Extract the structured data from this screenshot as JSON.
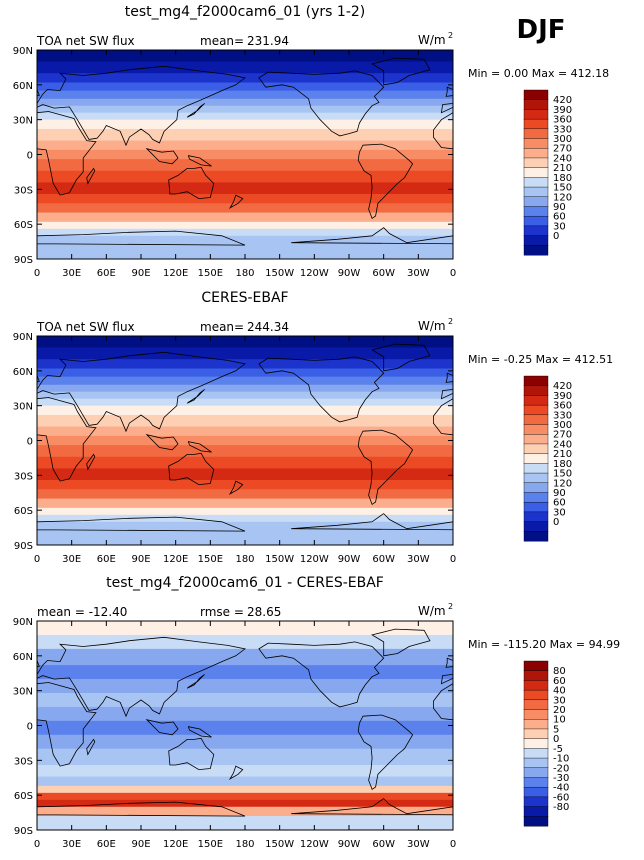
{
  "season": "DJF",
  "axes": {
    "lat_labels": [
      "90N",
      "60N",
      "30N",
      "0",
      "30S",
      "60S",
      "90S"
    ],
    "lon_labels": [
      "0",
      "30E",
      "60E",
      "90E",
      "120E",
      "150E",
      "180",
      "150W",
      "120W",
      "90W",
      "60W",
      "30W",
      "0"
    ]
  },
  "panels": [
    {
      "title": "test_mg4_f2000cam6_01 (yrs 1-2)",
      "left_label": "TOA net SW flux",
      "mean_label": "mean=",
      "mean": "231.94",
      "units_base": "W/m",
      "units_exp": "2",
      "minmax": "Min =    0.00 Max = 412.18",
      "kind": "abs",
      "colorbar": {
        "labels": [
          "420",
          "390",
          "360",
          "330",
          "300",
          "270",
          "240",
          "210",
          "180",
          "150",
          "120",
          "90",
          "60",
          "30",
          "0"
        ],
        "colors": [
          "#8b0000",
          "#b0150a",
          "#d42a14",
          "#ec4a24",
          "#f26a42",
          "#f88c64",
          "#fcae8c",
          "#fdd0b4",
          "#fff0e6",
          "#c8dcf6",
          "#a8c4f2",
          "#87a8ee",
          "#5b82ec",
          "#3a5ee6",
          "#1c34cc",
          "#0a1aa8",
          "#001084"
        ]
      }
    },
    {
      "title": "CERES-EBAF",
      "left_label": "TOA net SW flux",
      "mean_label": "mean=",
      "mean": "244.34",
      "units_base": "W/m",
      "units_exp": "2",
      "minmax": "Min =  -0.25 Max = 412.51",
      "kind": "abs",
      "colorbar": {
        "labels": [
          "420",
          "390",
          "360",
          "330",
          "300",
          "270",
          "240",
          "210",
          "180",
          "150",
          "120",
          "90",
          "60",
          "30",
          "0"
        ],
        "colors": [
          "#8b0000",
          "#b0150a",
          "#d42a14",
          "#ec4a24",
          "#f26a42",
          "#f88c64",
          "#fcae8c",
          "#fdd0b4",
          "#fff0e6",
          "#c8dcf6",
          "#a8c4f2",
          "#87a8ee",
          "#5b82ec",
          "#3a5ee6",
          "#1c34cc",
          "#0a1aa8",
          "#001084"
        ]
      }
    },
    {
      "title": "test_mg4_f2000cam6_01 - CERES-EBAF",
      "left_label": "mean = -12.40",
      "mean_label": "rmse =",
      "mean": "28.65",
      "units_base": "W/m",
      "units_exp": "2",
      "minmax": "Min = -115.20 Max =  94.99",
      "kind": "diff",
      "colorbar": {
        "labels": [
          "80",
          "60",
          "40",
          "30",
          "20",
          "10",
          "5",
          "0",
          "-5",
          "-10",
          "-20",
          "-30",
          "-40",
          "-60",
          "-80"
        ],
        "colors": [
          "#8b0000",
          "#b0150a",
          "#d42a14",
          "#ec4a24",
          "#f26a42",
          "#f88c64",
          "#fcae8c",
          "#fdd0b4",
          "#fff0e6",
          "#c8dcf6",
          "#a8c4f2",
          "#87a8ee",
          "#5b82ec",
          "#3a5ee6",
          "#1c34cc",
          "#0a1aa8",
          "#001084"
        ]
      }
    }
  ]
}
